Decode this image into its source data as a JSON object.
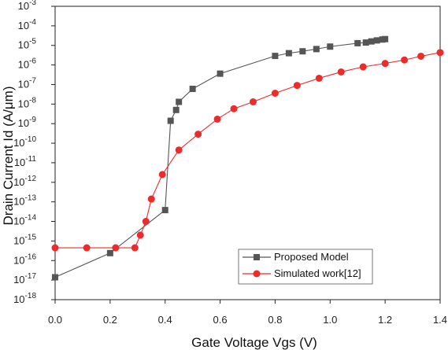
{
  "chart_data": {
    "type": "scatter",
    "title": "",
    "xlabel": "Gate Voltage  Vgs (V)",
    "ylabel": "Drain Current Id (A/μm)",
    "xlim": [
      0.0,
      1.4
    ],
    "ylim_log10": [
      -18,
      -3
    ],
    "y_scale": "log",
    "grid": false,
    "legend_position": "lower-right",
    "x_ticks": [
      "0.0",
      "0.2",
      "0.4",
      "0.6",
      "0.8",
      "1.0",
      "1.2",
      "1.4"
    ],
    "x_tick_values": [
      0.0,
      0.2,
      0.4,
      0.6,
      0.8,
      1.0,
      1.2,
      1.4
    ],
    "y_tick_exponents": [
      -3,
      -4,
      -5,
      -6,
      -7,
      -8,
      -9,
      -10,
      -11,
      -12,
      -13,
      -14,
      -15,
      -16,
      -17,
      -18
    ],
    "series": [
      {
        "name": "Proposed Model",
        "marker": "square",
        "color": "#555555",
        "x": [
          0.0,
          0.2,
          0.4,
          0.42,
          0.44,
          0.45,
          0.5,
          0.6,
          0.8,
          0.85,
          0.9,
          0.95,
          1.0,
          1.1,
          1.13,
          1.15,
          1.17,
          1.19,
          1.2
        ],
        "y": [
          1.4e-17,
          2.4e-16,
          3.8e-14,
          1.4e-09,
          5e-09,
          1.3e-08,
          6e-08,
          3.6e-07,
          2.9e-06,
          4e-06,
          5e-06,
          6.5e-06,
          8.7e-06,
          1.3e-05,
          1.4e-05,
          1.6e-05,
          1.8e-05,
          2e-05,
          2.1e-05
        ]
      },
      {
        "name": "Simulated work[12]",
        "marker": "circle",
        "color": "#ee2a2a",
        "x": [
          0.0,
          0.115,
          0.22,
          0.29,
          0.31,
          0.33,
          0.35,
          0.39,
          0.45,
          0.52,
          0.59,
          0.65,
          0.72,
          0.8,
          0.88,
          0.96,
          1.04,
          1.12,
          1.2,
          1.27,
          1.33,
          1.4
        ],
        "y": [
          4.5e-16,
          4.5e-16,
          4.5e-16,
          4.5e-16,
          2e-15,
          1e-14,
          1.4e-13,
          2.5e-12,
          4.5e-11,
          2.9e-10,
          1.7e-09,
          5.8e-09,
          1.3e-08,
          3.6e-08,
          9e-08,
          2.1e-07,
          4.4e-07,
          8e-07,
          1.2e-06,
          1.8e-06,
          2.8e-06,
          4.3e-06
        ]
      }
    ]
  }
}
